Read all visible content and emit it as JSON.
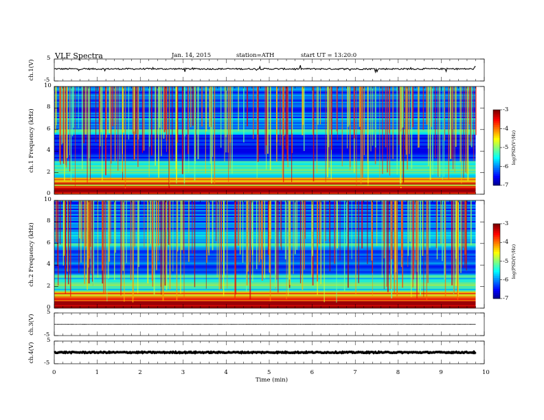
{
  "header": {
    "title": "VLF Spectra",
    "date": "Jan. 14, 2015",
    "station": "station=ATH",
    "start": "start UT = 13:20:0"
  },
  "chart_data": [
    {
      "type": "line",
      "panel": "ch1-waveform",
      "ylabel": "ch.1(V)",
      "ylim": [
        -5,
        5
      ],
      "yticks": [
        "5",
        "-5"
      ],
      "xlim": [
        0,
        10
      ],
      "x_end_data": 9.8,
      "mean_value": 0.5,
      "noise_amplitude": 0.35,
      "color": "#000000"
    },
    {
      "type": "heatmap",
      "panel": "ch1-spectrogram",
      "ylabel": "ch.1 Frequency (kHz)",
      "ylim": [
        0,
        10
      ],
      "yticks": [
        "0",
        "2",
        "4",
        "6",
        "8",
        "10"
      ],
      "xlim": [
        0,
        10
      ],
      "x_end_data": 9.8,
      "colorbar": {
        "label": "log(PSD(V²/Hz)",
        "range": [
          -7,
          -3
        ],
        "ticks": [
          "-3",
          "-4",
          "-5",
          "-6",
          "-7"
        ]
      }
    },
    {
      "type": "heatmap",
      "panel": "ch2-spectrogram",
      "ylabel": "ch.2 Frequency (kHz)",
      "ylim": [
        0,
        10
      ],
      "yticks": [
        "0",
        "2",
        "4",
        "6",
        "8",
        "10"
      ],
      "xlim": [
        0,
        10
      ],
      "x_end_data": 9.8,
      "colorbar": {
        "label": "log(PSD(V²/Hz)",
        "range": [
          -7,
          -3
        ],
        "ticks": [
          "-3",
          "-4",
          "-5",
          "-6",
          "-7"
        ]
      }
    },
    {
      "type": "line",
      "panel": "ch3-waveform",
      "ylabel": "ch.3(V)",
      "ylim": [
        -5,
        5
      ],
      "yticks": [
        "5",
        "-5"
      ],
      "xlim": [
        0,
        10
      ],
      "x_end_data": 9.8,
      "mean_value": 0.0,
      "noise_amplitude": 0.08,
      "color": "#000000"
    },
    {
      "type": "line",
      "panel": "ch4-waveform",
      "ylabel": "ch.4(V)",
      "ylim": [
        -5,
        5
      ],
      "yticks": [
        "5",
        "-5"
      ],
      "xlim": [
        0,
        10
      ],
      "x_end_data": 9.8,
      "mean_value": 0.0,
      "noise_amplitude": 0.25,
      "color": "#000000"
    }
  ],
  "xaxis": {
    "label": "Time (min)",
    "ticks": [
      "0",
      "1",
      "2",
      "3",
      "4",
      "5",
      "6",
      "7",
      "8",
      "9",
      "10"
    ]
  }
}
